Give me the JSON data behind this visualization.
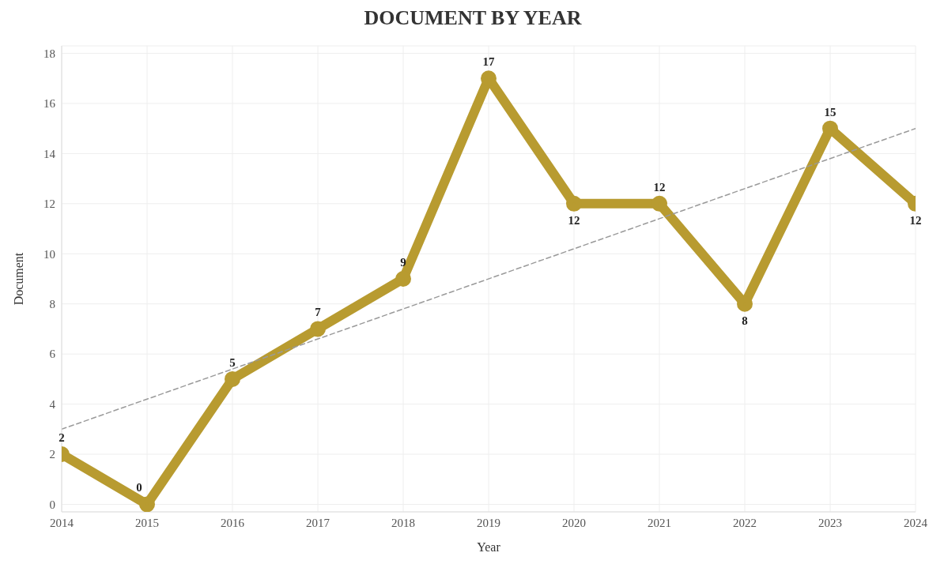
{
  "chart_data": {
    "type": "line",
    "title": "DOCUMENT BY YEAR",
    "xlabel": "Year",
    "ylabel": "Document",
    "x": [
      2014,
      2015,
      2016,
      2017,
      2018,
      2019,
      2020,
      2021,
      2022,
      2023,
      2024
    ],
    "series": [
      {
        "color": "#b89b30",
        "values": [
          2,
          0,
          5,
          7,
          9,
          17,
          12,
          12,
          8,
          15,
          12
        ],
        "value_labels": [
          "2",
          "0",
          "5",
          "7",
          "9",
          "17",
          "12",
          "12",
          "8",
          "15",
          "12"
        ],
        "marker": "circle"
      },
      {
        "type": "line",
        "x": [
          2014,
          2024
        ],
        "values": [
          3,
          15
        ],
        "color": "#9a9a9a",
        "line_style": "dashed",
        "marker": "none"
      }
    ],
    "xlim": [
      2014,
      2024
    ],
    "xticks": [
      2014,
      2015,
      2016,
      2017,
      2018,
      2019,
      2020,
      2021,
      2022,
      2023,
      2024
    ],
    "ylim": [
      -0.3,
      18.3
    ],
    "yticks": [
      0,
      2,
      4,
      6,
      8,
      10,
      12,
      14,
      16,
      18
    ],
    "grid": true,
    "line_style": "solid"
  }
}
